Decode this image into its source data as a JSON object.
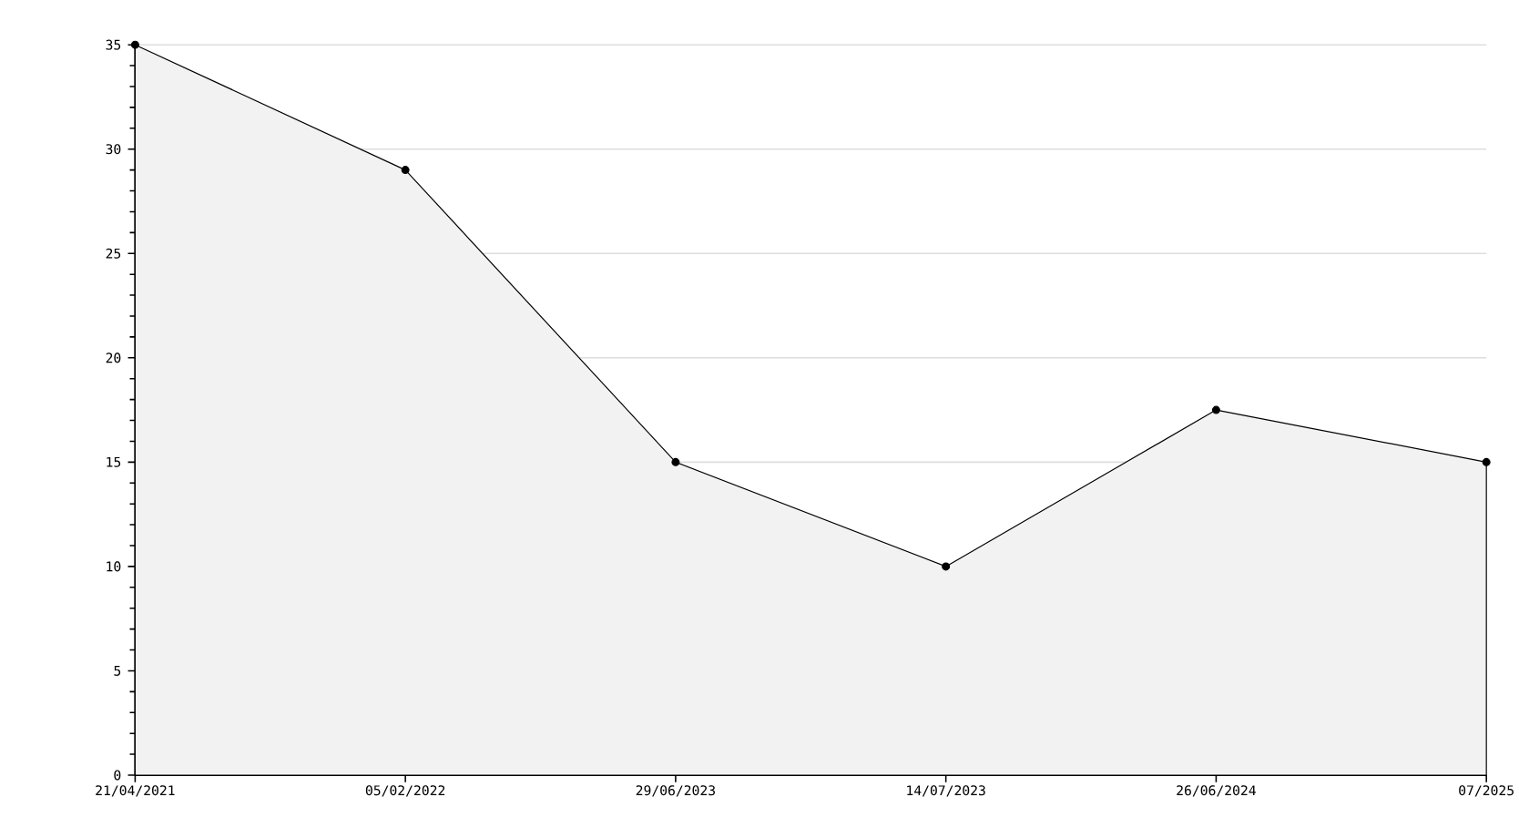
{
  "chart_data": {
    "type": "area",
    "categories": [
      "21/04/2021",
      "05/02/2022",
      "29/06/2023",
      "14/07/2023",
      "26/06/2024",
      "07/2025"
    ],
    "values": [
      35,
      29,
      15,
      10,
      17.5,
      15
    ],
    "color": "#f2f2f2",
    "ylim": [
      0,
      35
    ],
    "yticks": [
      0,
      5,
      10,
      15,
      20,
      25,
      30,
      35
    ],
    "grid": "y",
    "marker": "circle",
    "line_style": "solid"
  }
}
